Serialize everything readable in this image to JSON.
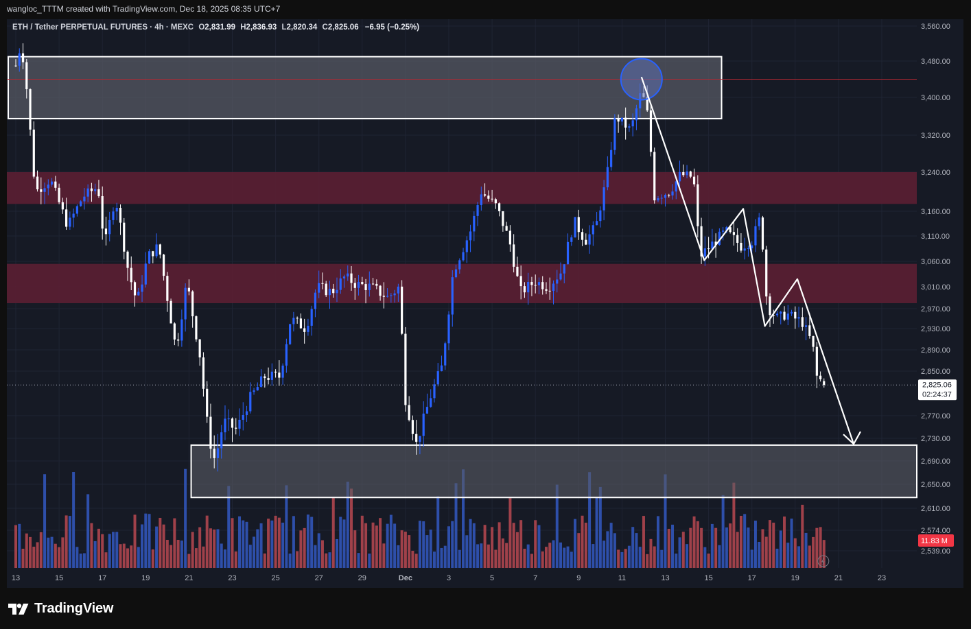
{
  "header": {
    "credit": "wangloc_TTTM created with TradingView.com, Dec 18, 2025 08:35 UTC+7"
  },
  "legend": {
    "symbol": "ETH / Tether PERPETUAL FUTURES · 4h · MEXC",
    "open_label": "O",
    "open": "2,831.99",
    "high_label": "H",
    "high": "2,836.93",
    "low_label": "L",
    "low": "2,820.34",
    "close_label": "C",
    "close": "2,825.06",
    "change": "−6.95 (−0.25%)"
  },
  "price_axis": {
    "ticks": [
      "3,560.00",
      "3,480.00",
      "3,400.00",
      "3,320.00",
      "3,240.00",
      "3,160.00",
      "3,110.00",
      "3,060.00",
      "3,010.00",
      "2,970.00",
      "2,930.00",
      "2,890.00",
      "2,850.00",
      "2,770.00",
      "2,730.00",
      "2,690.00",
      "2,650.00",
      "2,610.00",
      "2,574.00",
      "2,539.00"
    ],
    "last_price": "2,825.06",
    "countdown": "02:24:37",
    "volume_label": "11.83 M"
  },
  "time_axis": {
    "ticks": [
      "13",
      "15",
      "17",
      "19",
      "21",
      "23",
      "25",
      "27",
      "29",
      "Dec",
      "3",
      "5",
      "7",
      "9",
      "11",
      "13",
      "15",
      "17",
      "19",
      "21",
      "23"
    ]
  },
  "chart_data": {
    "type": "candlestick",
    "interval": "4h",
    "y_range": [
      2539,
      3560
    ],
    "x_range": [
      "Nov 13",
      "Dec 23"
    ],
    "zones": [
      {
        "kind": "supply",
        "low": 3355,
        "high": 3490
      },
      {
        "kind": "resistance",
        "low": 3175,
        "high": 3240
      },
      {
        "kind": "resistance",
        "low": 2980,
        "high": 3055
      },
      {
        "kind": "demand",
        "low": 2628,
        "high": 2718
      }
    ],
    "projection_path": [
      [
        "Dec 10 12:00",
        3445
      ],
      [
        "Dec 12 20:00",
        3062
      ],
      [
        "Dec 15 08:00",
        3165
      ],
      [
        "Dec 16 04:00",
        2935
      ],
      [
        "Dec 17 20:00",
        3025
      ],
      [
        "Dec 20 20:00",
        2720
      ]
    ],
    "current_price": 2825.06
  },
  "colors": {
    "background": "#161a25",
    "bull_candle": "#2962ff",
    "bear_candle": "#ffffff",
    "zone_red": "#5b1f33",
    "zone_gray": "#5a5c66",
    "volume_up": "#2e4faa",
    "volume_down": "#a0414a",
    "volume_badge": "#f23645"
  },
  "footer": {
    "brand": "TradingView",
    "logo_icon": "tradingview-logo-icon"
  }
}
